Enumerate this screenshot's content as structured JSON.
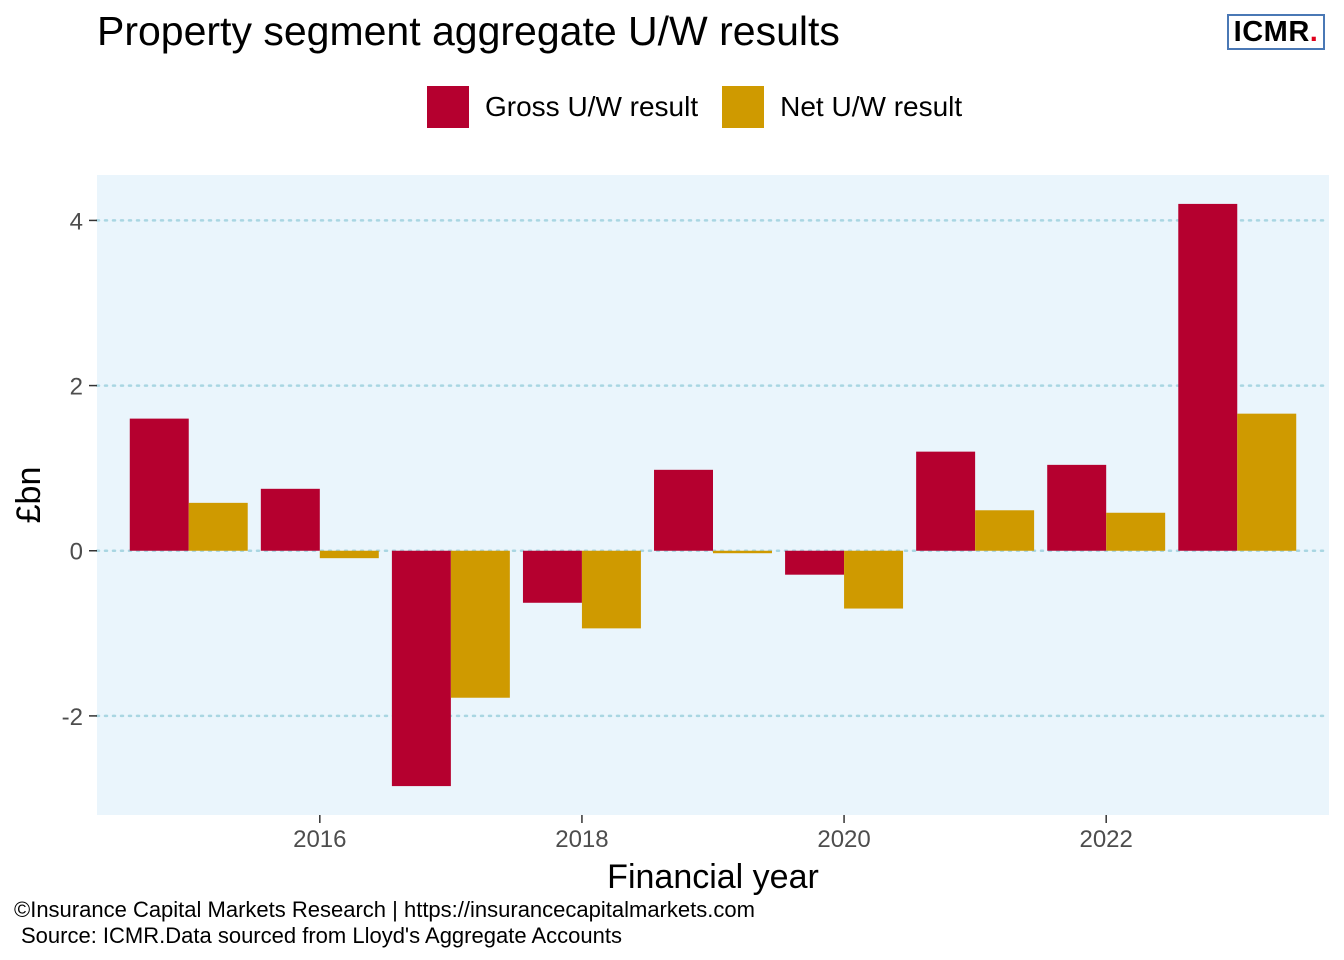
{
  "title": "Property segment aggregate U/W results",
  "logo": {
    "text": "ICMR",
    "dot": "."
  },
  "footer": {
    "line1": "©Insurance Capital Markets Research | https://insurancecapitalmarkets.com",
    "line2": "Source: ICMR.Data sourced from Lloyd's Aggregate Accounts"
  },
  "chart_data": {
    "type": "bar",
    "xlabel": "Financial year",
    "ylabel": "£bn",
    "x": [
      2015,
      2016,
      2017,
      2018,
      2019,
      2020,
      2021,
      2022,
      2023
    ],
    "x_tick_labels": [
      "2016",
      "2018",
      "2020",
      "2022"
    ],
    "y_ticks": [
      -2,
      0,
      2,
      4
    ],
    "ylim": [
      -3.2,
      4.55
    ],
    "xlim": [
      2014.3,
      2023.7
    ],
    "grid": "horizontal dotted",
    "legend_position": "top",
    "series": [
      {
        "name": "Gross U/W result",
        "color": "#b5002f",
        "values": [
          1.6,
          0.75,
          -2.85,
          -0.63,
          0.98,
          -0.29,
          1.2,
          1.04,
          4.2
        ]
      },
      {
        "name": "Net U/W result",
        "color": "#cf9a00",
        "values": [
          0.58,
          -0.09,
          -1.78,
          -0.94,
          -0.03,
          -0.7,
          0.49,
          0.46,
          1.66
        ]
      }
    ],
    "panel_background": "#eaf5fc",
    "grid_color": "#a9d6e2"
  }
}
